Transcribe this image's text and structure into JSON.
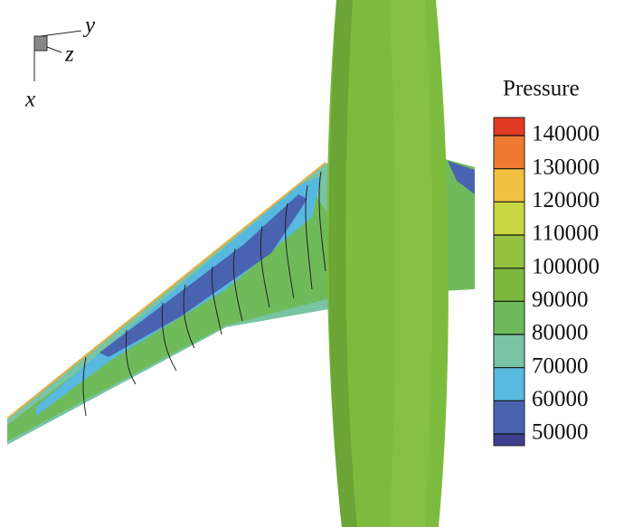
{
  "axes_triad": {
    "x": "x",
    "y": "y",
    "z": "z"
  },
  "legend": {
    "title": "Pressure",
    "ticks": [
      140000,
      130000,
      120000,
      110000,
      100000,
      90000,
      80000,
      70000,
      60000,
      50000
    ],
    "band_colors": [
      "#e03a22",
      "#ee7a32",
      "#f2c040",
      "#c8d640",
      "#93c23f",
      "#7ab83e",
      "#6fbb5c",
      "#78c4a4",
      "#57b8e0",
      "#4a63b0",
      "#3c3f8e"
    ]
  }
}
